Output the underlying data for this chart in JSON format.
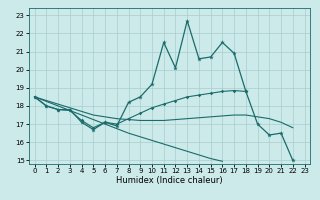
{
  "title": "",
  "xlabel": "Humidex (Indice chaleur)",
  "background_color": "#cceaea",
  "grid_color": "#aacccc",
  "line_color": "#1a6b6b",
  "xlim": [
    -0.5,
    23.5
  ],
  "ylim": [
    14.8,
    23.4
  ],
  "yticks": [
    15,
    16,
    17,
    18,
    19,
    20,
    21,
    22,
    23
  ],
  "xticks": [
    0,
    1,
    2,
    3,
    4,
    5,
    6,
    7,
    8,
    9,
    10,
    11,
    12,
    13,
    14,
    15,
    16,
    17,
    18,
    19,
    20,
    21,
    22,
    23
  ],
  "x": [
    0,
    1,
    2,
    3,
    4,
    5,
    6,
    7,
    8,
    9,
    10,
    11,
    12,
    13,
    14,
    15,
    16,
    17,
    18,
    19,
    20,
    21,
    22,
    23
  ],
  "series_main": [
    18.5,
    18.0,
    17.8,
    17.8,
    17.1,
    16.7,
    17.1,
    16.9,
    18.2,
    18.5,
    19.2,
    21.5,
    20.1,
    22.7,
    20.6,
    20.7,
    21.5,
    20.9,
    18.8,
    17.0,
    16.4,
    16.5,
    15.0,
    null
  ],
  "series_smooth": [
    18.5,
    18.0,
    17.8,
    17.75,
    17.2,
    16.8,
    17.1,
    17.0,
    17.3,
    17.6,
    17.9,
    18.1,
    18.3,
    18.5,
    18.6,
    18.7,
    18.8,
    18.85,
    18.8,
    null,
    null,
    null,
    null,
    null
  ],
  "series_lin1": [
    18.5,
    18.3,
    18.1,
    17.9,
    17.7,
    17.5,
    17.4,
    17.3,
    17.25,
    17.2,
    17.2,
    17.2,
    17.25,
    17.3,
    17.35,
    17.4,
    17.45,
    17.5,
    17.5,
    17.4,
    17.3,
    17.1,
    16.8,
    null
  ],
  "series_lin2": [
    18.5,
    18.25,
    18.0,
    17.75,
    17.5,
    17.25,
    17.0,
    16.75,
    16.5,
    16.3,
    16.1,
    15.9,
    15.7,
    15.5,
    15.3,
    15.1,
    14.95,
    null,
    null,
    null,
    null,
    null,
    null,
    null
  ]
}
